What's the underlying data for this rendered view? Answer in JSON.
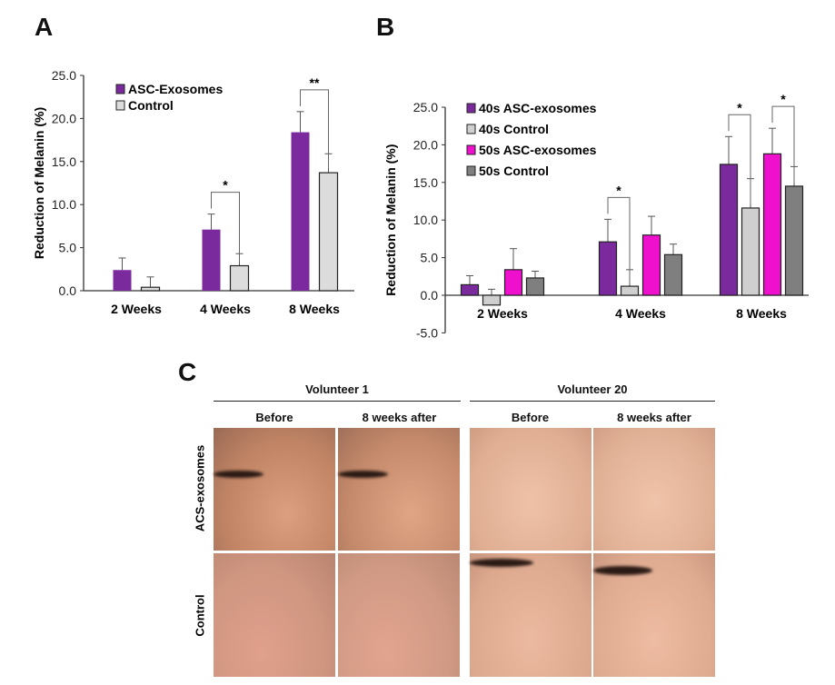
{
  "panels": {
    "a": "A",
    "b": "B",
    "c": "C"
  },
  "chart_data": [
    {
      "type": "bar",
      "title": "",
      "ylabel": "Reduction of Melanin (%)",
      "xlabel": "",
      "ylim": [
        0,
        25
      ],
      "yticks": [
        "0.0",
        "5.0",
        "10.0",
        "15.0",
        "20.0",
        "25.0"
      ],
      "categories": [
        "2 Weeks",
        "4 Weeks",
        "8 Weeks"
      ],
      "legend_position": "top-left",
      "series": [
        {
          "name": "ASC-Exosomes",
          "color": "#7b2a9e",
          "values": [
            2.4,
            7.1,
            18.4
          ],
          "errors": [
            1.4,
            1.8,
            2.4
          ]
        },
        {
          "name": "Control",
          "color": "#dcdcdc",
          "values": [
            0.4,
            2.9,
            13.7
          ],
          "errors": [
            1.2,
            1.4,
            2.2
          ]
        }
      ],
      "significance": [
        {
          "category": "4 Weeks",
          "pair": [
            0,
            1
          ],
          "label": "*"
        },
        {
          "category": "8 Weeks",
          "pair": [
            0,
            1
          ],
          "label": "**"
        }
      ]
    },
    {
      "type": "bar",
      "title": "",
      "ylabel": "Reduction of Melanin (%)",
      "xlabel": "",
      "ylim": [
        -5,
        25
      ],
      "yticks": [
        "-5.0",
        "0.0",
        "5.0",
        "10.0",
        "15.0",
        "20.0",
        "25.0"
      ],
      "categories": [
        "2 Weeks",
        "4 Weeks",
        "8 Weeks"
      ],
      "legend_position": "top-left",
      "series": [
        {
          "name": "40s ASC-exosomes",
          "color": "#7b2a9e",
          "values": [
            1.4,
            7.1,
            17.4
          ],
          "errors": [
            1.2,
            3.0,
            3.7
          ]
        },
        {
          "name": "40s Control",
          "color": "#cfcfcf",
          "values": [
            -1.3,
            1.2,
            11.6
          ],
          "errors": [
            2.1,
            2.2,
            3.9
          ]
        },
        {
          "name": "50s ASC-exosomes",
          "color": "#ee10cc",
          "values": [
            3.4,
            8.0,
            18.8
          ],
          "errors": [
            2.8,
            2.5,
            3.4
          ]
        },
        {
          "name": "50s Control",
          "color": "#7f7f7f",
          "values": [
            2.3,
            5.4,
            14.5
          ],
          "errors": [
            0.9,
            1.4,
            2.6
          ]
        }
      ],
      "significance": [
        {
          "category": "4 Weeks",
          "pair": [
            0,
            1
          ],
          "label": "*"
        },
        {
          "category": "8 Weeks",
          "pair": [
            0,
            1
          ],
          "label": "*"
        },
        {
          "category": "8 Weeks",
          "pair": [
            2,
            3
          ],
          "label": "*"
        }
      ]
    }
  ],
  "photos": {
    "volunteers": [
      "Volunteer 1",
      "Volunteer 20"
    ],
    "before": "Before",
    "after": "8 weeks after",
    "rows": [
      "ACS-exosomes",
      "Control"
    ]
  }
}
